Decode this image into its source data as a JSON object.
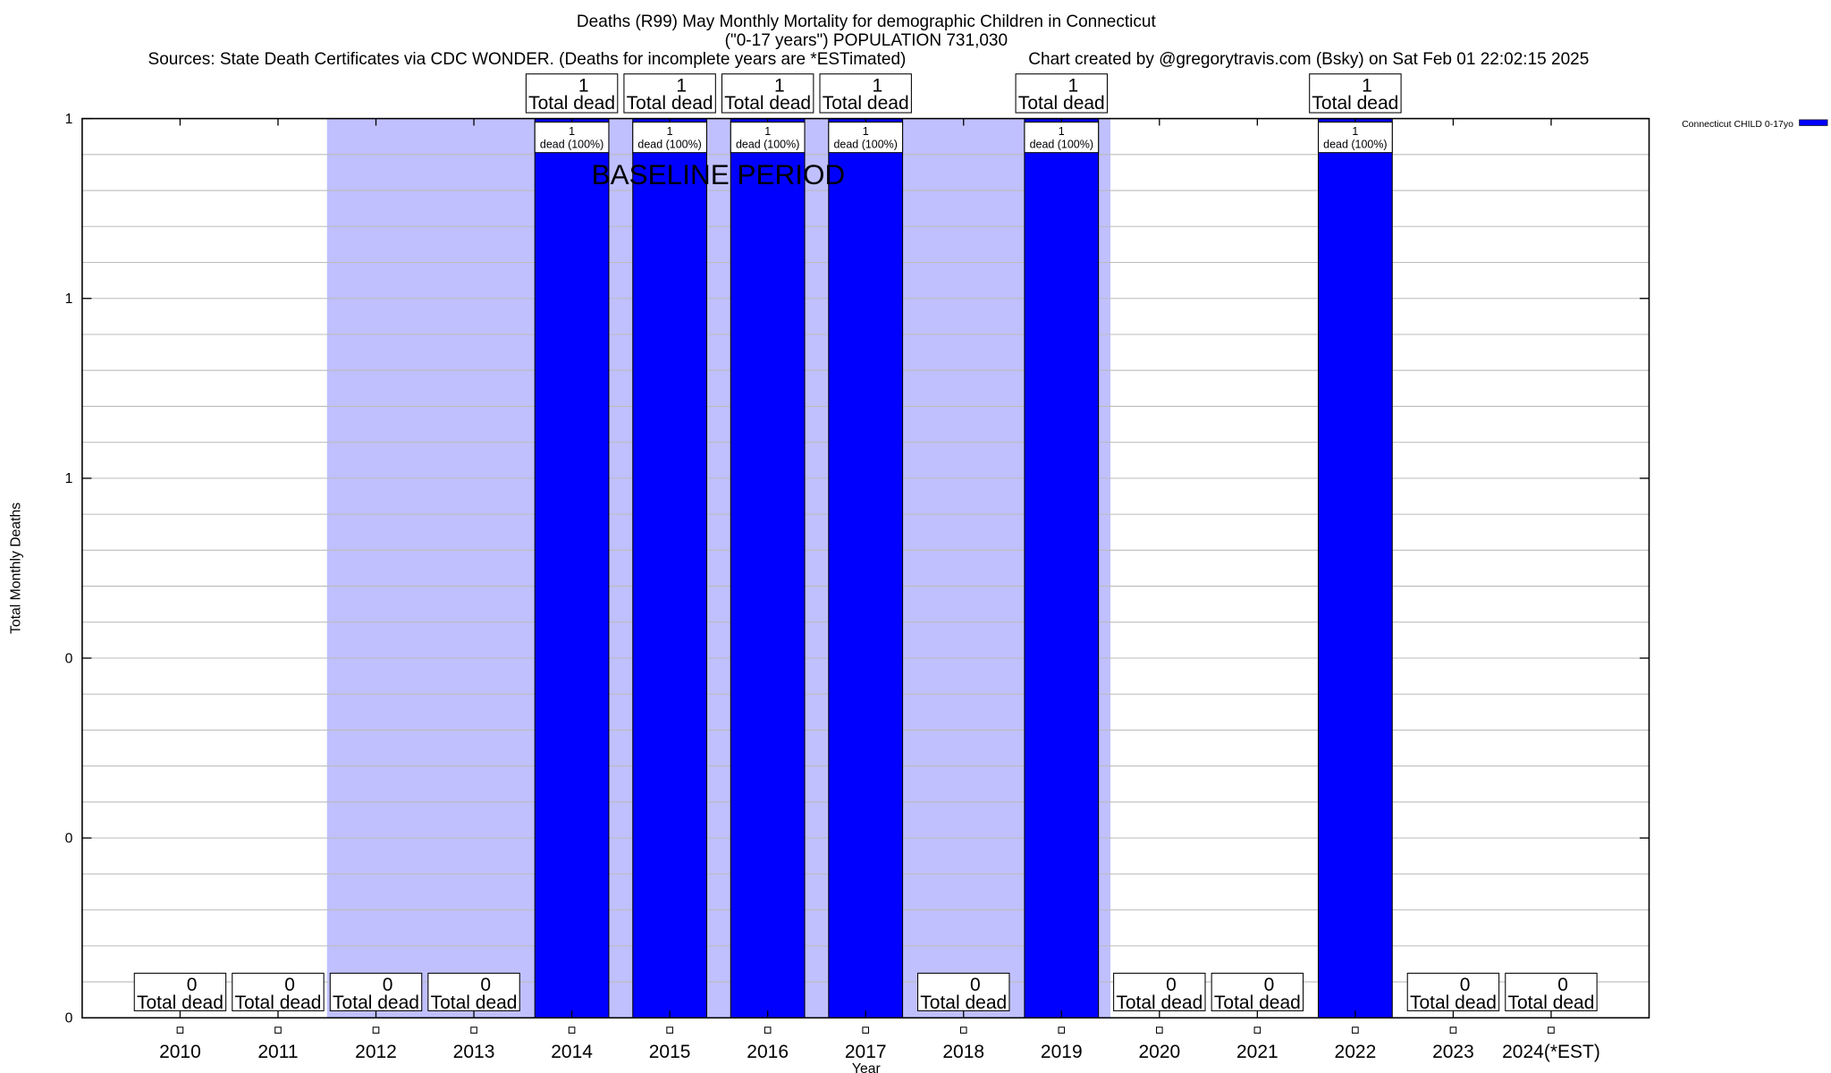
{
  "chart_data": {
    "type": "bar",
    "title": "Deaths (R99) May Monthly Mortality for demographic Children in Connecticut",
    "subtitle": "(\"0-17 years\") POPULATION 731,030",
    "sources": "Sources: State Death Certificates via CDC WONDER. (Deaths for incomplete years are *ESTimated)",
    "credit": "Chart created by @gregorytravis.com (Bsky) on Sat Feb 01 22:02:15 2025",
    "xlabel": "Year",
    "ylabel": "Total Monthly Deaths",
    "ylim": [
      0,
      1
    ],
    "y_tick_values": [
      0,
      0.2,
      0.4,
      0.6,
      0.8,
      1.0
    ],
    "y_tick_labels": [
      "0",
      "0",
      "0",
      "1",
      "1",
      "1"
    ],
    "grid": true,
    "categories": [
      "2010",
      "2011",
      "2012",
      "2013",
      "2014",
      "2015",
      "2016",
      "2017",
      "2018",
      "2019",
      "2020",
      "2021",
      "2022",
      "2023",
      "2024(*EST)"
    ],
    "series": [
      {
        "name": "Connecticut CHILD 0-17yo",
        "color": "#0000ff",
        "values": [
          0,
          0,
          0,
          0,
          1,
          1,
          1,
          1,
          0,
          1,
          0,
          0,
          1,
          0,
          0
        ]
      }
    ],
    "total_labels": [
      "0",
      "0",
      "0",
      "0",
      "1",
      "1",
      "1",
      "1",
      "0",
      "1",
      "0",
      "0",
      "1",
      "0",
      "0"
    ],
    "total_suffix": "Total dead",
    "bar_labels": [
      "",
      "",
      "",
      "",
      "1",
      "1",
      "1",
      "1",
      "",
      "1",
      "",
      "",
      "1",
      "",
      ""
    ],
    "bar_suffix": "dead (100%)",
    "baseline": {
      "label": "BASELINE PERIOD",
      "start": "2012",
      "end": "2019",
      "color": "#c0c0ff"
    },
    "legend": {
      "label": "Connecticut CHILD 0-17yo",
      "placement": "top-right-outside"
    }
  }
}
